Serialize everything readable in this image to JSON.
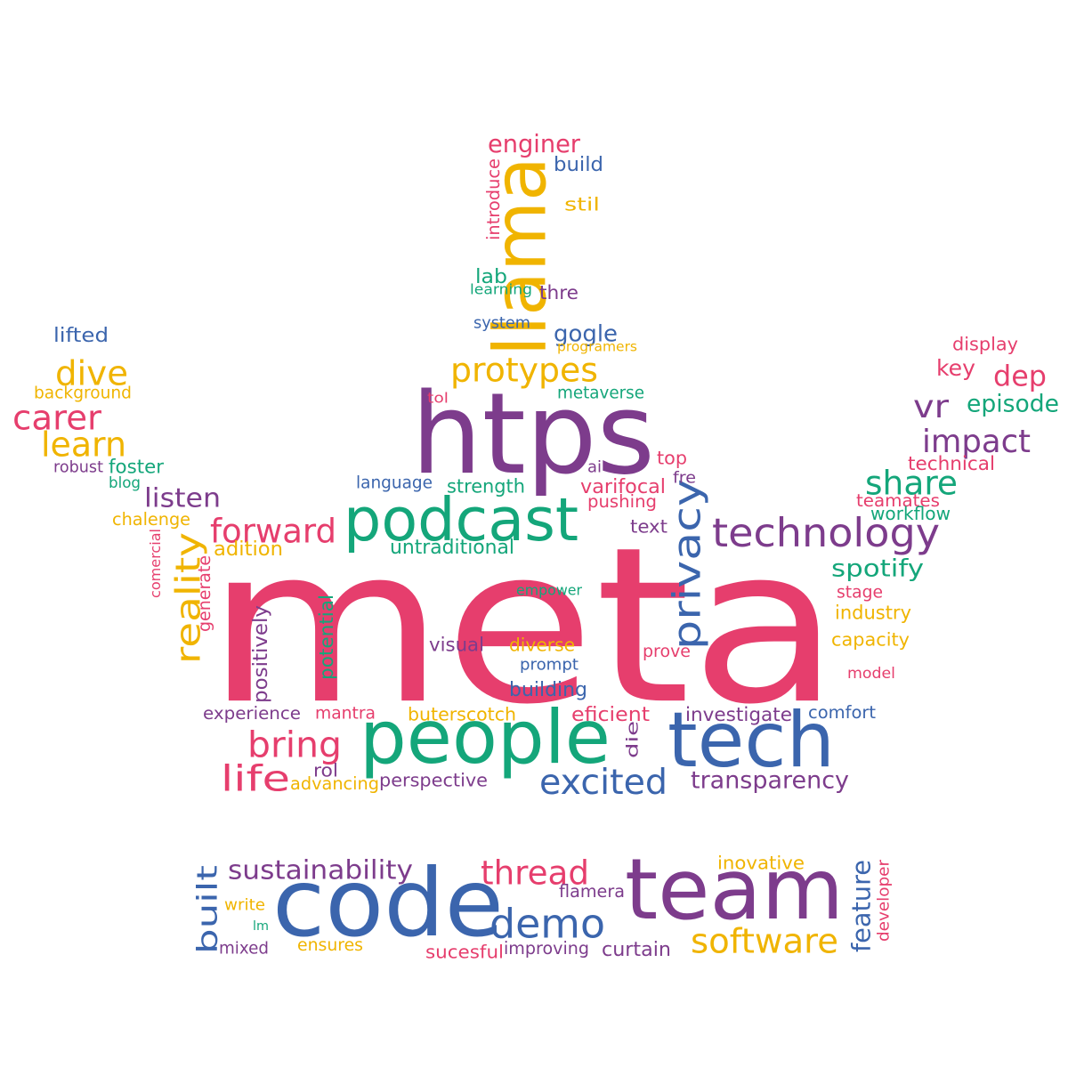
{
  "palette": {
    "pink": "#e63e6d",
    "purple": "#7d3c8c",
    "green": "#14a67a",
    "blue": "#3b65ad",
    "yellow": "#f0b400"
  },
  "words": [
    {
      "text": "meta",
      "color": "pink"
    },
    {
      "text": "htps",
      "color": "purple"
    },
    {
      "text": "llama",
      "color": "yellow"
    },
    {
      "text": "podcast",
      "color": "green"
    },
    {
      "text": "people",
      "color": "green"
    },
    {
      "text": "tech",
      "color": "blue"
    },
    {
      "text": "code",
      "color": "blue"
    },
    {
      "text": "team",
      "color": "purple"
    },
    {
      "text": "demo",
      "color": "blue"
    },
    {
      "text": "thread",
      "color": "pink"
    },
    {
      "text": "software",
      "color": "yellow"
    },
    {
      "text": "privacy",
      "color": "blue"
    },
    {
      "text": "technology",
      "color": "purple"
    },
    {
      "text": "forward",
      "color": "pink"
    },
    {
      "text": "reality",
      "color": "yellow"
    },
    {
      "text": "protypes",
      "color": "yellow"
    },
    {
      "text": "bring",
      "color": "pink"
    },
    {
      "text": "excited",
      "color": "blue"
    },
    {
      "text": "life",
      "color": "pink"
    },
    {
      "text": "share",
      "color": "green"
    },
    {
      "text": "impact",
      "color": "purple"
    },
    {
      "text": "dep",
      "color": "pink"
    },
    {
      "text": "vr",
      "color": "purple"
    },
    {
      "text": "episode",
      "color": "green"
    },
    {
      "text": "key",
      "color": "pink"
    },
    {
      "text": "display",
      "color": "pink"
    },
    {
      "text": "technical",
      "color": "pink"
    },
    {
      "text": "teamates",
      "color": "pink"
    },
    {
      "text": "workflow",
      "color": "green"
    },
    {
      "text": "spotify",
      "color": "green"
    },
    {
      "text": "stage",
      "color": "pink"
    },
    {
      "text": "industry",
      "color": "yellow"
    },
    {
      "text": "capacity",
      "color": "yellow"
    },
    {
      "text": "model",
      "color": "pink"
    },
    {
      "text": "comfort",
      "color": "blue"
    },
    {
      "text": "investigate",
      "color": "purple"
    },
    {
      "text": "transparency",
      "color": "purple"
    },
    {
      "text": "dive",
      "color": "yellow"
    },
    {
      "text": "carer",
      "color": "pink"
    },
    {
      "text": "learn",
      "color": "yellow"
    },
    {
      "text": "background",
      "color": "yellow"
    },
    {
      "text": "lifted",
      "color": "blue"
    },
    {
      "text": "robust",
      "color": "purple"
    },
    {
      "text": "foster",
      "color": "green"
    },
    {
      "text": "blog",
      "color": "green"
    },
    {
      "text": "listen",
      "color": "purple"
    },
    {
      "text": "chalenge",
      "color": "yellow"
    },
    {
      "text": "adition",
      "color": "yellow"
    },
    {
      "text": "comercial",
      "color": "pink"
    },
    {
      "text": "generate",
      "color": "pink"
    },
    {
      "text": "positively",
      "color": "purple"
    },
    {
      "text": "potential",
      "color": "green"
    },
    {
      "text": "experience",
      "color": "purple"
    },
    {
      "text": "mantra",
      "color": "pink"
    },
    {
      "text": "buterscotch",
      "color": "yellow"
    },
    {
      "text": "eficient",
      "color": "pink"
    },
    {
      "text": "die",
      "color": "purple"
    },
    {
      "text": "rol",
      "color": "purple"
    },
    {
      "text": "advancing",
      "color": "yellow"
    },
    {
      "text": "perspective",
      "color": "purple"
    },
    {
      "text": "enginer",
      "color": "pink"
    },
    {
      "text": "build",
      "color": "blue"
    },
    {
      "text": "introduce",
      "color": "pink"
    },
    {
      "text": "stil",
      "color": "yellow"
    },
    {
      "text": "lab",
      "color": "green"
    },
    {
      "text": "learning",
      "color": "green"
    },
    {
      "text": "thre",
      "color": "purple"
    },
    {
      "text": "system",
      "color": "blue"
    },
    {
      "text": "gogle",
      "color": "blue"
    },
    {
      "text": "programers",
      "color": "yellow"
    },
    {
      "text": "metaverse",
      "color": "green"
    },
    {
      "text": "tol",
      "color": "pink"
    },
    {
      "text": "ai",
      "color": "purple"
    },
    {
      "text": "top",
      "color": "pink"
    },
    {
      "text": "fre",
      "color": "purple"
    },
    {
      "text": "language",
      "color": "blue"
    },
    {
      "text": "strength",
      "color": "green"
    },
    {
      "text": "varifocal",
      "color": "pink"
    },
    {
      "text": "pushing",
      "color": "pink"
    },
    {
      "text": "text",
      "color": "purple"
    },
    {
      "text": "untraditional",
      "color": "green"
    },
    {
      "text": "empower",
      "color": "green"
    },
    {
      "text": "visual",
      "color": "purple"
    },
    {
      "text": "diverse",
      "color": "yellow"
    },
    {
      "text": "prove",
      "color": "pink"
    },
    {
      "text": "prompt",
      "color": "blue"
    },
    {
      "text": "building",
      "color": "blue"
    },
    {
      "text": "sustainability",
      "color": "purple"
    },
    {
      "text": "built",
      "color": "blue"
    },
    {
      "text": "write",
      "color": "yellow"
    },
    {
      "text": "lm",
      "color": "green"
    },
    {
      "text": "mixed",
      "color": "purple"
    },
    {
      "text": "ensures",
      "color": "yellow"
    },
    {
      "text": "sucesful",
      "color": "pink"
    },
    {
      "text": "improving",
      "color": "purple"
    },
    {
      "text": "curtain",
      "color": "purple"
    },
    {
      "text": "flamera",
      "color": "purple"
    },
    {
      "text": "inovative",
      "color": "yellow"
    },
    {
      "text": "feature",
      "color": "blue"
    },
    {
      "text": "developer",
      "color": "pink"
    }
  ]
}
